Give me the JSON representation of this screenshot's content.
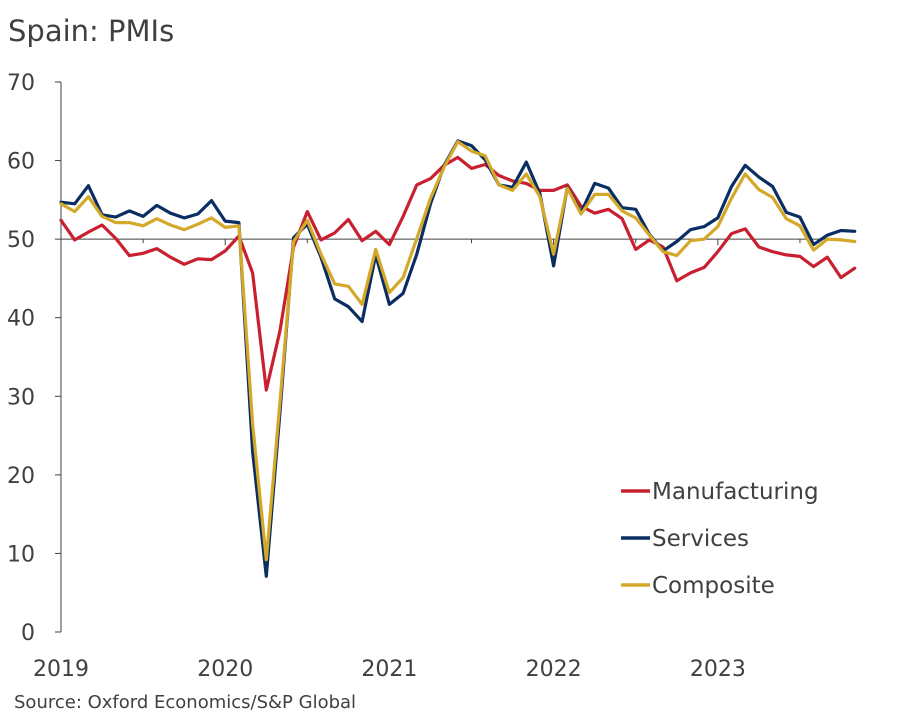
{
  "chart_data": {
    "type": "line",
    "title": "Spain: PMIs",
    "source": "Source: Oxford Economics/S&P Global",
    "ylim": [
      0,
      70
    ],
    "yticks": [
      0,
      10,
      20,
      30,
      40,
      50,
      60,
      70
    ],
    "x_tick_labels": [
      "2019",
      "2020",
      "2021",
      "2022",
      "2023"
    ],
    "x_start": "2019-01",
    "x_end": "2023-10",
    "reference_line": 50,
    "legend_position": "bottom-right",
    "series": [
      {
        "name": "Manufacturing",
        "color": "#c8202f",
        "values": [
          52.4,
          49.9,
          50.9,
          51.8,
          50.1,
          47.9,
          48.2,
          48.8,
          47.7,
          46.8,
          47.5,
          47.4,
          48.5,
          50.4,
          45.7,
          30.8,
          38.3,
          49.0,
          53.5,
          49.9,
          50.8,
          52.5,
          49.8,
          51.0,
          49.3,
          52.9,
          56.9,
          57.7,
          59.4,
          60.4,
          59.0,
          59.5,
          58.1,
          57.4,
          57.1,
          56.2,
          56.2,
          56.9,
          54.2,
          53.3,
          53.8,
          52.6,
          48.7,
          49.9,
          49.0,
          44.7,
          45.7,
          46.4,
          48.4,
          50.7,
          51.3,
          49.0,
          48.4,
          48.0,
          47.8,
          46.5,
          47.7,
          45.1,
          46.3
        ]
      },
      {
        "name": "Services",
        "color": "#0a2d62",
        "values": [
          54.7,
          54.5,
          56.8,
          53.1,
          52.8,
          53.6,
          52.9,
          54.3,
          53.3,
          52.7,
          53.2,
          54.9,
          52.3,
          52.1,
          23.0,
          7.1,
          27.9,
          50.2,
          51.9,
          47.7,
          42.4,
          41.4,
          39.5,
          48.0,
          41.7,
          43.1,
          48.1,
          54.5,
          59.4,
          62.5,
          61.9,
          60.1,
          56.9,
          56.6,
          59.8,
          55.8,
          46.6,
          56.6,
          53.4,
          57.1,
          56.5,
          54.0,
          53.8,
          50.6,
          48.5,
          49.7,
          51.2,
          51.6,
          52.7,
          56.7,
          59.4,
          57.9,
          56.7,
          53.4,
          52.8,
          49.3,
          50.5,
          51.1,
          51.0
        ]
      },
      {
        "name": "Composite",
        "color": "#d4a829",
        "values": [
          54.5,
          53.5,
          55.4,
          52.9,
          52.1,
          52.1,
          51.7,
          52.6,
          51.8,
          51.2,
          51.9,
          52.7,
          51.5,
          51.7,
          26.5,
          9.2,
          29.2,
          49.7,
          52.4,
          48.1,
          44.3,
          44.0,
          41.7,
          48.7,
          43.2,
          45.1,
          50.1,
          55.2,
          59.2,
          62.4,
          61.2,
          60.6,
          56.9,
          56.2,
          58.3,
          55.4,
          48.1,
          56.5,
          53.2,
          55.7,
          55.7,
          53.6,
          52.7,
          50.5,
          48.4,
          47.9,
          49.8,
          50.0,
          51.6,
          55.2,
          58.3,
          56.3,
          55.3,
          52.6,
          51.7,
          48.6,
          50.0,
          49.9,
          49.7
        ]
      }
    ]
  }
}
